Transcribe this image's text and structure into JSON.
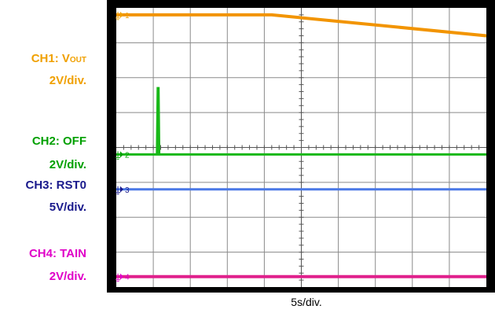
{
  "channels": [
    {
      "id": "ch1",
      "name_prefix": "CH1: V",
      "name_sub": "OUT",
      "scale": "2V/div.",
      "marker": "1",
      "color": "#f0a000"
    },
    {
      "id": "ch2",
      "name": "CH2: OFF",
      "scale": "2V/div.",
      "marker": "2",
      "color": "#00a000"
    },
    {
      "id": "ch3",
      "name": "CH3: RST0",
      "scale": "5V/div.",
      "marker": "3",
      "color": "#1a1a8c"
    },
    {
      "id": "ch4",
      "name": "CH4: TAIN",
      "scale": "2V/div.",
      "marker": "4",
      "color": "#e000c8"
    }
  ],
  "xlabel": "5s/div.",
  "chart_data": {
    "type": "line",
    "title": "",
    "xlabel": "5s/div.",
    "ylabel": "",
    "x_divisions": 10,
    "y_divisions": 8,
    "xlim": [
      0,
      10
    ],
    "ylim": [
      0,
      8
    ],
    "grid": true,
    "series": [
      {
        "name": "CH1: VOUT",
        "color": "#f29400",
        "x": [
          0,
          4.2,
          10
        ],
        "y": [
          7.8,
          7.8,
          7.2
        ]
      },
      {
        "name": "CH2: OFF",
        "color": "#18b818",
        "x": [
          0,
          1.1,
          1.12,
          1.14,
          1.16,
          10
        ],
        "y": [
          3.8,
          3.8,
          5.7,
          5.7,
          3.8,
          3.8
        ]
      },
      {
        "name": "CH3: RST0",
        "color": "#4a78e6",
        "x": [
          0,
          10
        ],
        "y": [
          2.8,
          2.8
        ]
      },
      {
        "name": "CH4: TAIN",
        "color": "#e0208c",
        "x": [
          0,
          10
        ],
        "y": [
          0.3,
          0.3
        ]
      }
    ]
  }
}
